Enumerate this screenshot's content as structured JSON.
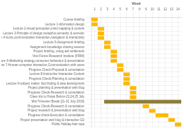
{
  "chart_data": {
    "type": "bar",
    "orientation": "horizontal",
    "xlabel": "Week",
    "categories": [
      "Course briefing",
      "Lecture 1-information design",
      "Lecture 2-visual perception,mind mapping & content",
      "Lecture 3-Principle of design,metaphor,semantic & semiotic",
      "Lecture 4-Icons,communicative interaction,navigation & interactivity",
      "Lecture 5-Assignment briefing",
      "Assignment knowledge sharing session",
      "Project briefing, orang asli settlement",
      "Visit Forest Research Institute (FRIM)",
      "Lecture 6-Marketing strategy,consumer behaviour & presentation",
      "Lecture 7-Human computer interaction,Communication with users",
      "Progress Check-Proposal & consultation",
      "Lecture 8-Instructive Interactive Content",
      "Progress Check-Planning & consultation",
      "Lecture 9-subject matter, fact finding & idea development",
      "Project planning & presentation web blog",
      "Progress Check-Research & consultation",
      "Class trip to Hutan Belum-23,24,25 July",
      "Mid-Trimester Break (21-31 July 2019)",
      "Progress Check-Research & consultation",
      "Project research & presentation web blog",
      "Progress check-Execution & consultation",
      "Project presentation web blog & interactive CD",
      "Public Holiday-hari raya"
    ],
    "start": [
      1,
      1,
      2,
      2,
      2,
      3,
      3,
      4,
      4,
      4,
      5,
      5,
      6,
      6,
      6,
      7,
      7,
      7,
      3,
      9,
      10,
      11,
      13,
      14
    ],
    "duration": [
      1,
      1,
      1,
      1,
      1,
      1,
      1,
      1,
      1,
      1,
      1,
      1,
      1,
      1,
      1,
      1,
      1,
      1,
      12,
      1,
      1,
      2,
      1,
      1
    ],
    "colors": [
      "#FFB800",
      "#FFB800",
      "#FFB800",
      "#FFB800",
      "#FFB800",
      "#FFB800",
      "#FFB800",
      "#FFB800",
      "#FFB800",
      "#FFB800",
      "#FFB800",
      "#FFB800",
      "#FFB800",
      "#FFB800",
      "#FFB800",
      "#FFB800",
      "#FFB800",
      "#FFB800",
      "#8B7D3A",
      "#FFB800",
      "#FFB800",
      "#FFB800",
      "#FFB800",
      "#FFB800"
    ],
    "xlim": [
      0.5,
      14.5
    ],
    "xticks": [
      1,
      2,
      3,
      4,
      5,
      6,
      7,
      8,
      9,
      10,
      11,
      12,
      13,
      14
    ],
    "grid": true
  }
}
